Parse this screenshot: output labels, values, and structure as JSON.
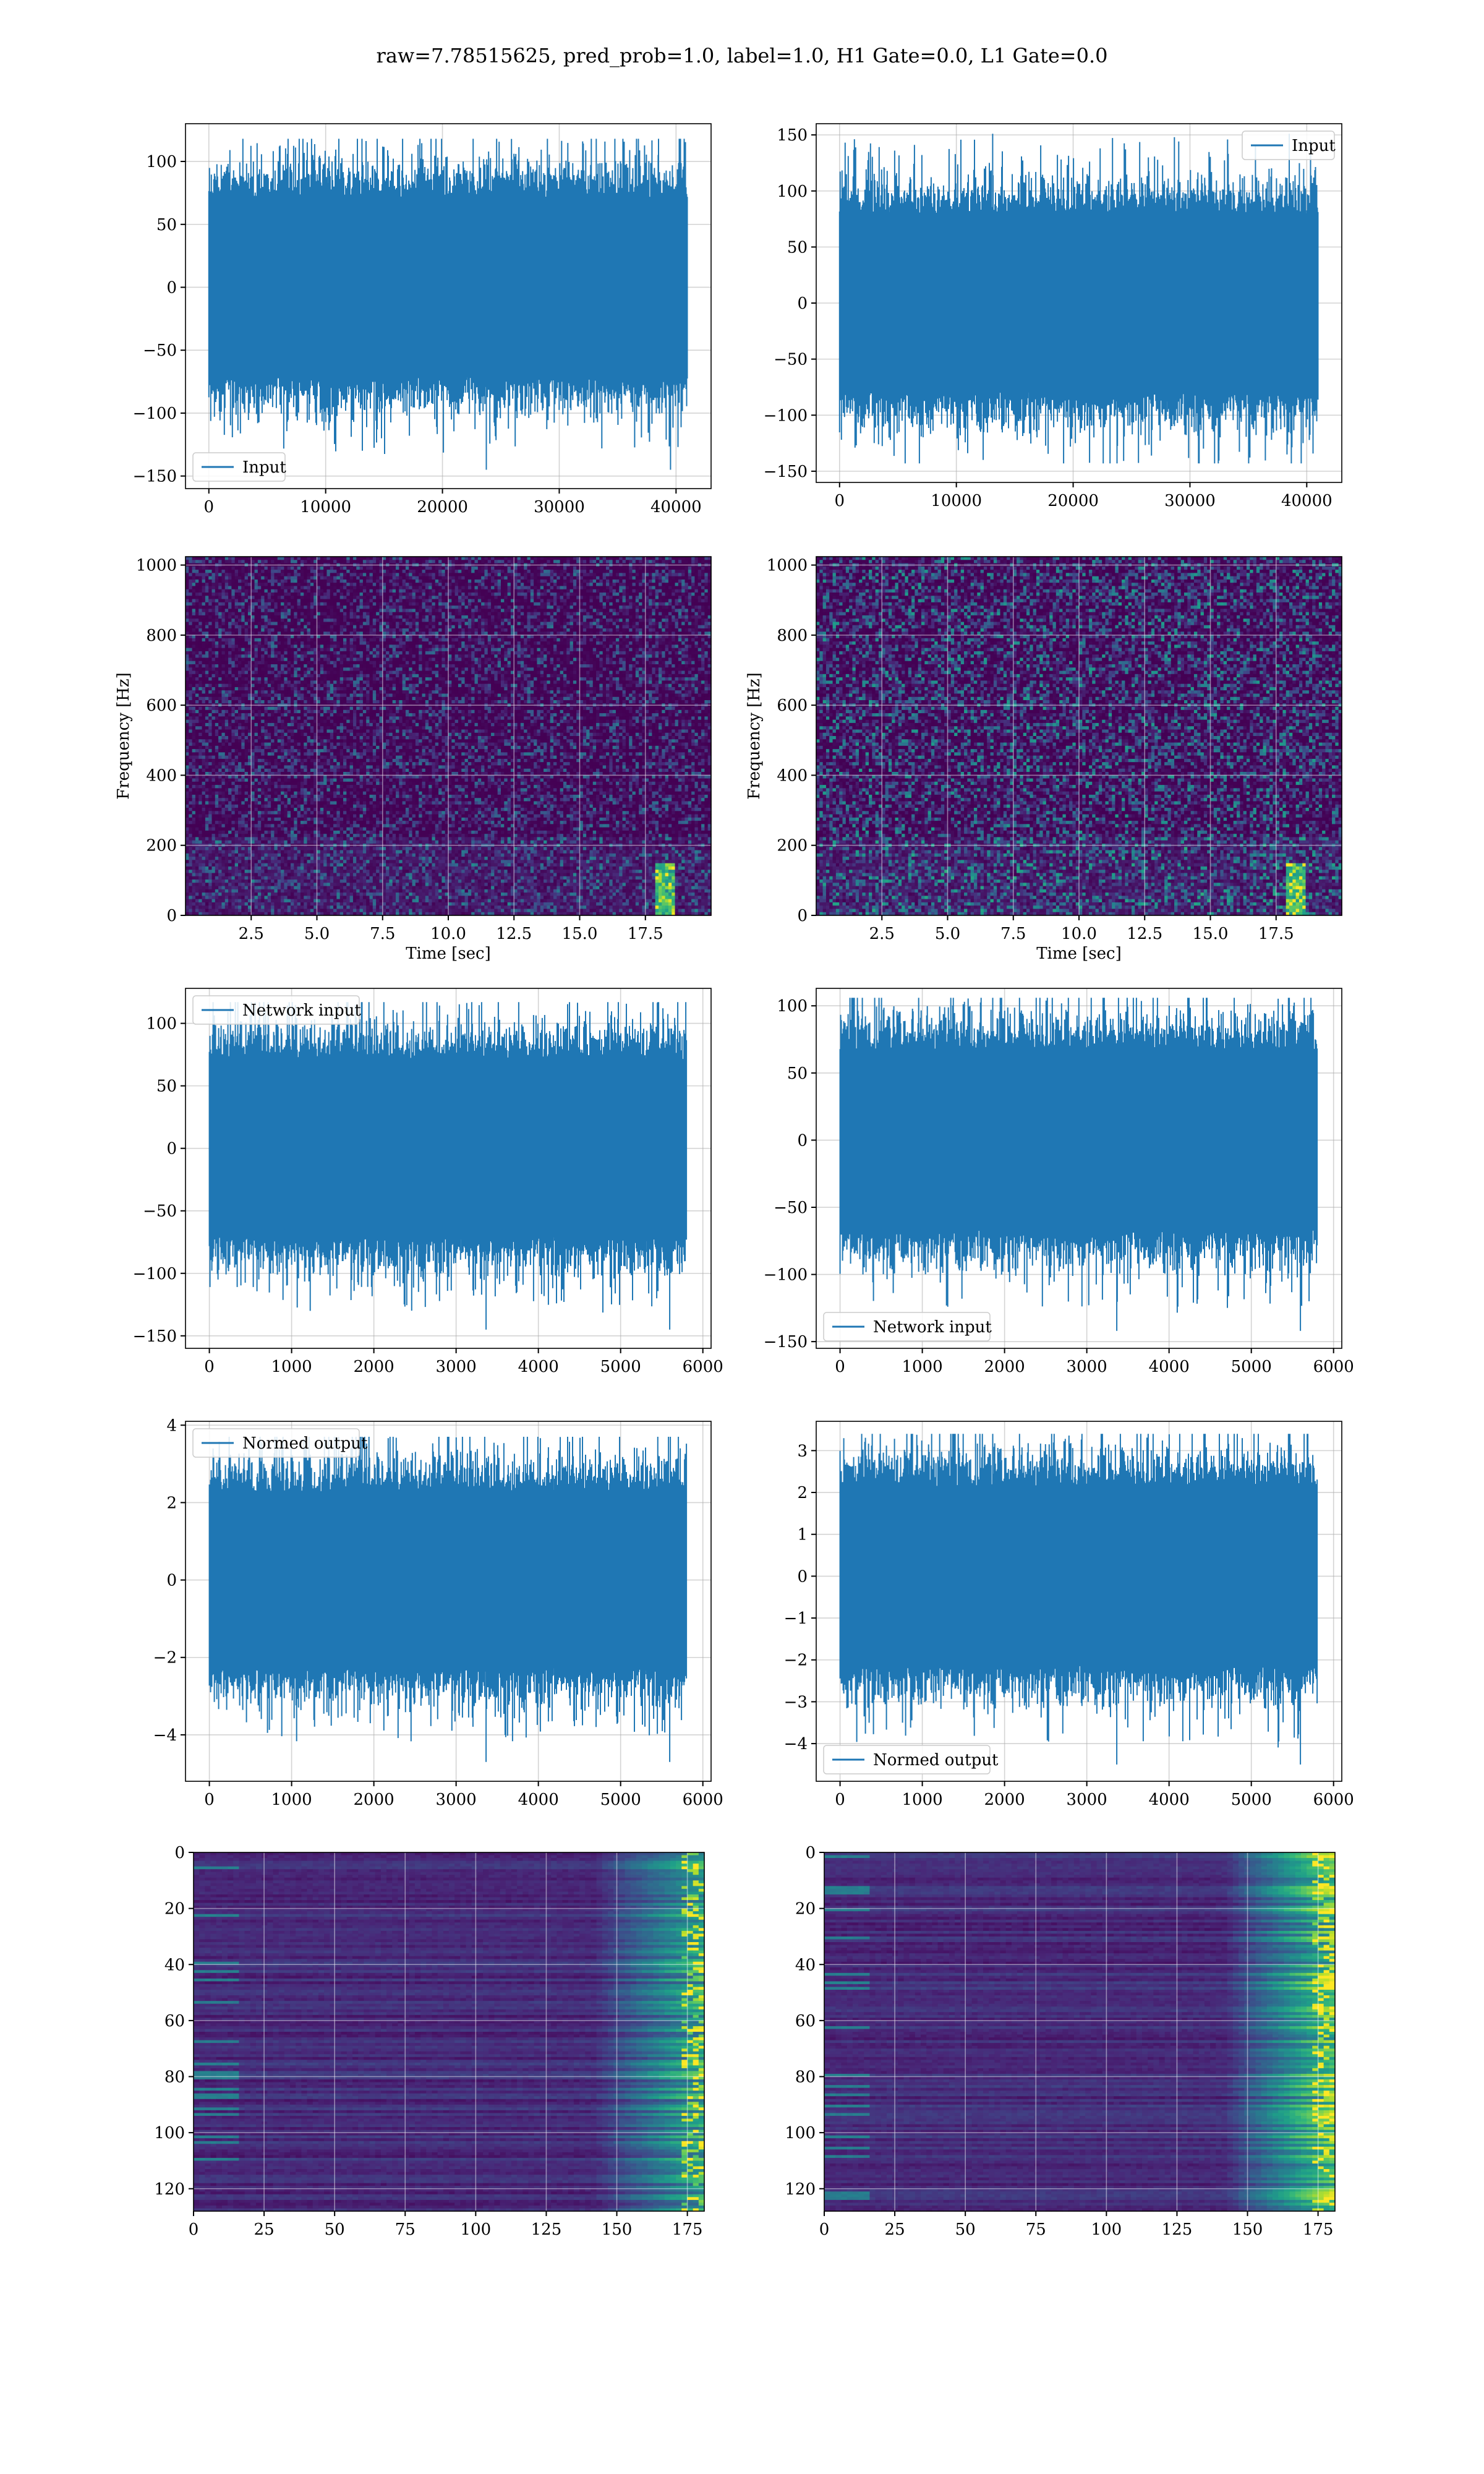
{
  "suptitle": "raw=7.78515625, pred_prob=1.0, label=1.0, H1 Gate=0.0, L1 Gate=0.0",
  "colors": {
    "line": "#1f77b4",
    "grid": "#b0b0b0",
    "viridis_dark": "#440154",
    "viridis_bright": "#fde725"
  },
  "chart_data": [
    {
      "id": "input-h1",
      "type": "line",
      "series": [
        {
          "name": "Input",
          "n": 40960,
          "amplitude_range": [
            -145,
            118
          ]
        }
      ],
      "xlim": [
        -2000,
        43000
      ],
      "ylim": [
        -160,
        130
      ],
      "xticks": [
        0,
        10000,
        20000,
        30000,
        40000
      ],
      "xtick_labels": [
        "0",
        "10000",
        "20000",
        "30000",
        "40000"
      ],
      "yticks": [
        -150,
        -100,
        -50,
        0,
        50,
        100
      ],
      "ytick_labels": [
        "−150",
        "−100",
        "−50",
        "0",
        "50",
        "100"
      ],
      "legend": "lower-left",
      "grid": true,
      "xlabel": "",
      "ylabel": ""
    },
    {
      "id": "input-l1",
      "type": "line",
      "series": [
        {
          "name": "Input",
          "n": 40960,
          "amplitude_range": [
            -143,
            151
          ]
        }
      ],
      "xlim": [
        -2000,
        43000
      ],
      "ylim": [
        -160,
        160
      ],
      "xticks": [
        0,
        10000,
        20000,
        30000,
        40000
      ],
      "xtick_labels": [
        "0",
        "10000",
        "20000",
        "30000",
        "40000"
      ],
      "yticks": [
        -150,
        -100,
        -50,
        0,
        50,
        100,
        150
      ],
      "ytick_labels": [
        "−150",
        "−100",
        "−50",
        "0",
        "50",
        "100",
        "150"
      ],
      "legend": "top-right",
      "grid": true,
      "xlabel": "",
      "ylabel": ""
    },
    {
      "id": "spectrogram-h1",
      "type": "heatmap",
      "xlim": [
        0,
        20
      ],
      "ylim": [
        0,
        1024
      ],
      "xticks": [
        2.5,
        5,
        7.5,
        10,
        12.5,
        15,
        17.5
      ],
      "xtick_labels": [
        "2.5",
        "5.0",
        "7.5",
        "10.0",
        "12.5",
        "15.0",
        "17.5"
      ],
      "yticks": [
        0,
        200,
        400,
        600,
        800,
        1000
      ],
      "ytick_labels": [
        "0",
        "200",
        "400",
        "600",
        "800",
        "1000"
      ],
      "xlabel": "Time [sec]",
      "ylabel": "Frequency [Hz]",
      "grid": true
    },
    {
      "id": "spectrogram-l1",
      "type": "heatmap",
      "xlim": [
        0,
        20
      ],
      "ylim": [
        0,
        1024
      ],
      "xticks": [
        2.5,
        5,
        7.5,
        10,
        12.5,
        15,
        17.5
      ],
      "xtick_labels": [
        "2.5",
        "5.0",
        "7.5",
        "10.0",
        "12.5",
        "15.0",
        "17.5"
      ],
      "yticks": [
        0,
        200,
        400,
        600,
        800,
        1000
      ],
      "ytick_labels": [
        "0",
        "200",
        "400",
        "600",
        "800",
        "1000"
      ],
      "xlabel": "Time [sec]",
      "ylabel": "Frequency [Hz]",
      "grid": true
    },
    {
      "id": "network-input-h1",
      "type": "line",
      "series": [
        {
          "name": "Network input",
          "n": 5800,
          "amplitude_range": [
            -145,
            117
          ]
        }
      ],
      "xlim": [
        -290,
        6100
      ],
      "ylim": [
        -160,
        128
      ],
      "xticks": [
        0,
        1000,
        2000,
        3000,
        4000,
        5000,
        6000
      ],
      "xtick_labels": [
        "0",
        "1000",
        "2000",
        "3000",
        "4000",
        "5000",
        "6000"
      ],
      "yticks": [
        -150,
        -100,
        -50,
        0,
        50,
        100
      ],
      "ytick_labels": [
        "−150",
        "−100",
        "−50",
        "0",
        "50",
        "100"
      ],
      "legend": "top-left",
      "grid": true,
      "xlabel": "",
      "ylabel": ""
    },
    {
      "id": "network-input-l1",
      "type": "line",
      "series": [
        {
          "name": "Network input",
          "n": 5800,
          "amplitude_range": [
            -142,
            106
          ]
        }
      ],
      "xlim": [
        -290,
        6100
      ],
      "ylim": [
        -155,
        113
      ],
      "xticks": [
        0,
        1000,
        2000,
        3000,
        4000,
        5000,
        6000
      ],
      "xtick_labels": [
        "0",
        "1000",
        "2000",
        "3000",
        "4000",
        "5000",
        "6000"
      ],
      "yticks": [
        -150,
        -100,
        -50,
        0,
        50,
        100
      ],
      "ytick_labels": [
        "−150",
        "−100",
        "−50",
        "0",
        "50",
        "100"
      ],
      "legend": "bottom-left",
      "grid": true,
      "xlabel": "",
      "ylabel": ""
    },
    {
      "id": "normed-output-h1",
      "type": "line",
      "series": [
        {
          "name": "Normed output",
          "n": 5800,
          "amplitude_range": [
            -4.7,
            3.7
          ]
        }
      ],
      "xlim": [
        -290,
        6100
      ],
      "ylim": [
        -5.2,
        4.1
      ],
      "xticks": [
        0,
        1000,
        2000,
        3000,
        4000,
        5000,
        6000
      ],
      "xtick_labels": [
        "0",
        "1000",
        "2000",
        "3000",
        "4000",
        "5000",
        "6000"
      ],
      "yticks": [
        -4,
        -2,
        0,
        2,
        4
      ],
      "ytick_labels": [
        "−4",
        "−2",
        "0",
        "2",
        "4"
      ],
      "legend": "top-left",
      "grid": true,
      "xlabel": "",
      "ylabel": ""
    },
    {
      "id": "normed-output-l1",
      "type": "line",
      "series": [
        {
          "name": "Normed output",
          "n": 5800,
          "amplitude_range": [
            -4.5,
            3.4
          ]
        }
      ],
      "xlim": [
        -290,
        6100
      ],
      "ylim": [
        -4.9,
        3.7
      ],
      "xticks": [
        0,
        1000,
        2000,
        3000,
        4000,
        5000,
        6000
      ],
      "xtick_labels": [
        "0",
        "1000",
        "2000",
        "3000",
        "4000",
        "5000",
        "6000"
      ],
      "yticks": [
        -4,
        -3,
        -2,
        -1,
        0,
        1,
        2,
        3
      ],
      "ytick_labels": [
        "−4",
        "−3",
        "−2",
        "−1",
        "0",
        "1",
        "2",
        "3"
      ],
      "legend": "bottom-left",
      "grid": true,
      "xlabel": "",
      "ylabel": ""
    },
    {
      "id": "feature-map-h1",
      "type": "heatmap",
      "xlim": [
        0,
        181
      ],
      "ylim": [
        128,
        0
      ],
      "xticks": [
        0,
        25,
        50,
        75,
        100,
        125,
        150,
        175
      ],
      "xtick_labels": [
        "0",
        "25",
        "50",
        "75",
        "100",
        "125",
        "150",
        "175"
      ],
      "yticks": [
        0,
        20,
        40,
        60,
        80,
        100,
        120
      ],
      "ytick_labels": [
        "0",
        "20",
        "40",
        "60",
        "80",
        "100",
        "120"
      ],
      "grid": true,
      "xlabel": "",
      "ylabel": ""
    },
    {
      "id": "feature-map-l1",
      "type": "heatmap",
      "xlim": [
        0,
        181
      ],
      "ylim": [
        128,
        0
      ],
      "xticks": [
        0,
        25,
        50,
        75,
        100,
        125,
        150,
        175
      ],
      "xtick_labels": [
        "0",
        "25",
        "50",
        "75",
        "100",
        "125",
        "150",
        "175"
      ],
      "yticks": [
        0,
        20,
        40,
        60,
        80,
        100,
        120
      ],
      "ytick_labels": [
        "0",
        "20",
        "40",
        "60",
        "80",
        "100",
        "120"
      ],
      "grid": true,
      "xlabel": "",
      "ylabel": ""
    }
  ]
}
